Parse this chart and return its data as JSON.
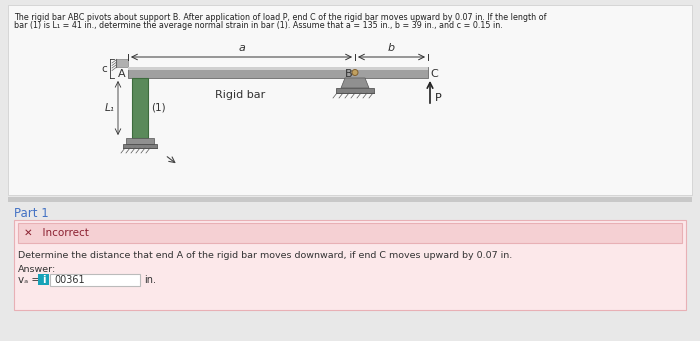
{
  "title_line1": "The rigid bar ABC pivots about support B. After application of load P, end C of the rigid bar moves upward by 0.07 in. If the length of",
  "title_line2": "bar (1) is L₁ = 41 in., determine the average normal strain in bar (1). Assume that a = 135 in., b = 39 in., and c = 0.15 in.",
  "diagram": {
    "bar_color": "#5a8a5a",
    "bar_dark": "#3d6b3d",
    "rigid_color": "#a0a0a0",
    "rigid_dark": "#787878",
    "support_color": "#8a8a8a",
    "wall_color": "#b0b0b0",
    "wall_dark": "#888888"
  },
  "part1": {
    "label": "Part 1",
    "incorrect_text": "✕   Incorrect",
    "incorrect_bg": "#f5d0d3",
    "incorrect_border": "#e8b0b5",
    "outer_bg": "#fce8ea",
    "outer_border": "#e8b0b5",
    "question": "Determine the distance that end A of the rigid bar moves downward, if end C moves upward by 0.07 in.",
    "answer_label": "Answer:",
    "va_label": "vₐ =",
    "answer_value": "00361",
    "unit": "in.",
    "info_color": "#17a2b8"
  },
  "bg_color": "#e8e8e8",
  "panel_bg": "#f0f0f0",
  "upper_bg": "#e8e8e8",
  "lower_bg": "#e0e0e0",
  "figsize": [
    7.0,
    3.41
  ],
  "dpi": 100
}
